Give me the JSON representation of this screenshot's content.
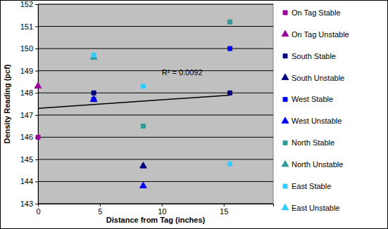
{
  "chart_data": {
    "type": "scatter",
    "x_label": "Distance from Tag (inches)",
    "y_label": "Density Reading (pcf)",
    "xlim": [
      0,
      19
    ],
    "xticks": [
      0,
      5,
      10,
      15
    ],
    "ylim": [
      143,
      152
    ],
    "yticks": [
      143,
      144,
      145,
      146,
      147,
      148,
      149,
      150,
      151,
      152
    ],
    "grid": true,
    "legend": "right",
    "series": [
      {
        "name": "On Tag Stable",
        "color": "#990099",
        "marker": "square",
        "x": [
          0
        ],
        "values": [
          146.0
        ]
      },
      {
        "name": "On Tag Unstable",
        "color": "#990099",
        "marker": "triangle",
        "x": [
          0
        ],
        "values": [
          148.3
        ]
      },
      {
        "name": "South Stable",
        "color": "#000080",
        "marker": "square",
        "x": [
          4.5,
          15.5
        ],
        "values": [
          148.0,
          148.0
        ]
      },
      {
        "name": "South Unstable",
        "color": "#000080",
        "marker": "triangle",
        "x": [
          4.5,
          8.5
        ],
        "values": [
          147.7,
          144.7
        ]
      },
      {
        "name": "West Stable",
        "color": "#0000ff",
        "marker": "square",
        "x": [
          4.5,
          15.5
        ],
        "values": [
          147.7,
          150.0
        ]
      },
      {
        "name": "West Unstable",
        "color": "#0000ff",
        "marker": "triangle",
        "x": [
          8.5
        ],
        "values": [
          143.8
        ]
      },
      {
        "name": "North Stable",
        "color": "#339999",
        "marker": "square",
        "x": [
          8.5,
          15.5
        ],
        "values": [
          146.5,
          151.2
        ]
      },
      {
        "name": "North Unstable",
        "color": "#339999",
        "marker": "triangle",
        "x": [
          4.5
        ],
        "values": [
          149.6
        ]
      },
      {
        "name": "East Stable",
        "color": "#33ccff",
        "marker": "square",
        "x": [
          4.5,
          8.5,
          15.5
        ],
        "values": [
          149.7,
          148.3,
          144.8
        ]
      },
      {
        "name": "East Unstable",
        "color": "#33ccff",
        "marker": "triangle",
        "x": [],
        "values": []
      }
    ],
    "trendline": {
      "x": [
        0,
        15.5
      ],
      "values": [
        147.3,
        147.9
      ],
      "color": "#000000",
      "line_style": "solid"
    },
    "annotations": [
      {
        "text": "R² = 0.0092"
      }
    ]
  }
}
